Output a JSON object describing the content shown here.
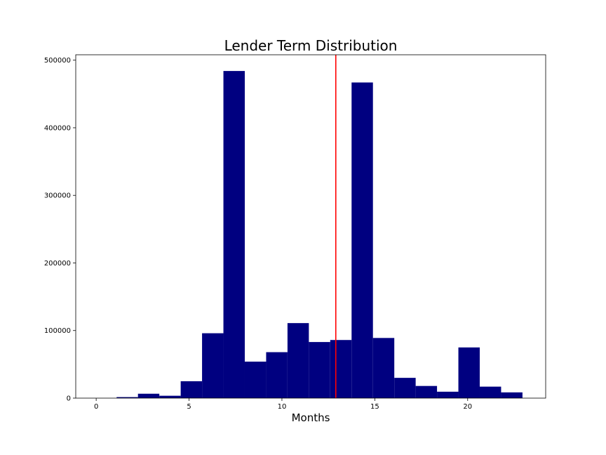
{
  "chart_data": {
    "type": "bar",
    "title": "Lender Term Distribution",
    "xlabel": "Months",
    "ylabel": "",
    "grid": false,
    "xlim": [
      -1.1,
      24.2
    ],
    "ylim": [
      0,
      508000
    ],
    "xticks": [
      0,
      5,
      10,
      15,
      20
    ],
    "yticks": [
      0,
      100000,
      200000,
      300000,
      400000,
      500000
    ],
    "bin_edges": [
      1.1,
      2.25,
      3.4,
      4.55,
      5.7,
      6.85,
      8.0,
      9.15,
      10.3,
      11.45,
      12.6,
      13.75,
      14.9,
      16.05,
      17.2,
      18.35,
      19.5,
      20.65,
      21.8,
      22.95
    ],
    "counts": [
      1500,
      6500,
      3500,
      25000,
      96000,
      484000,
      54000,
      68000,
      111000,
      83000,
      86000,
      467000,
      89000,
      30000,
      18000,
      9500,
      75000,
      17000,
      8500
    ],
    "bar_color": "#000080",
    "reference_line": {
      "x": 12.9,
      "color": "#ff0000"
    }
  }
}
